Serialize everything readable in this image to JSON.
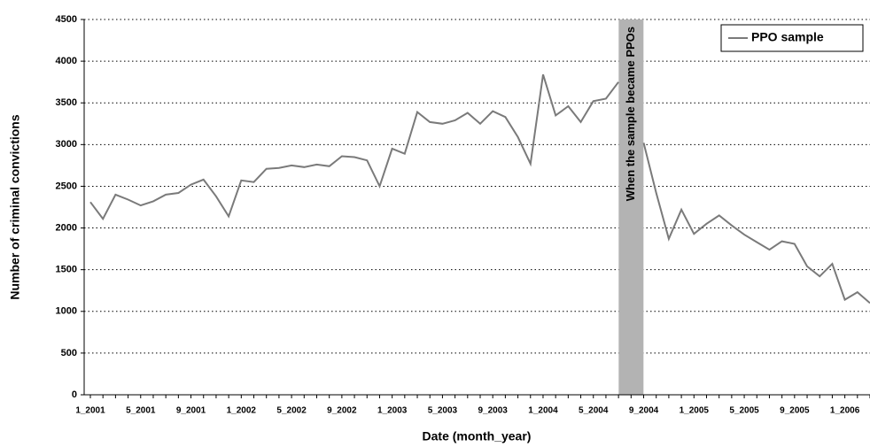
{
  "chart_data": {
    "type": "line",
    "x_label": "Date (month_year)",
    "y_label": "Number of criminal convictions",
    "annotation": "When the sample became PPOs",
    "categories": [
      "1_2001",
      null,
      null,
      null,
      "5_2001",
      null,
      null,
      null,
      "9_2001",
      null,
      null,
      null,
      "1_2002",
      null,
      null,
      null,
      "5_2002",
      null,
      null,
      null,
      "9_2002",
      null,
      null,
      null,
      "1_2003",
      null,
      null,
      null,
      "5_2003",
      null,
      null,
      null,
      "9_2003",
      null,
      null,
      null,
      "1_2004",
      null,
      null,
      null,
      "5_2004",
      null,
      null,
      null,
      "9_2004",
      null,
      null,
      null,
      "1_2005",
      null,
      null,
      null,
      "5_2005",
      null,
      null,
      null,
      "9_2005",
      null,
      null,
      null,
      "1_2006",
      null,
      null
    ],
    "series": [
      {
        "name": "PPO sample",
        "color": "#7a7a7a",
        "values": [
          2310,
          2110,
          2400,
          2340,
          2270,
          2320,
          2400,
          2420,
          2520,
          2580,
          2380,
          2140,
          2570,
          2550,
          2710,
          2720,
          2750,
          2730,
          2760,
          2740,
          2860,
          2850,
          2810,
          2500,
          2950,
          2890,
          3390,
          3270,
          3250,
          3290,
          3380,
          3250,
          3400,
          3330,
          3090,
          2770,
          3840,
          3350,
          3460,
          3270,
          3520,
          3550,
          3750,
          null,
          3020,
          2420,
          1870,
          2220,
          1930,
          2050,
          2150,
          2030,
          1920,
          1830,
          1740,
          1840,
          1810,
          1540,
          1420,
          1570,
          1140,
          1230,
          1100
        ]
      }
    ],
    "ylim": [
      0,
      4500
    ],
    "yticks": [
      0,
      500,
      1000,
      1500,
      2000,
      2500,
      3000,
      3500,
      4000,
      4500
    ],
    "grid": true,
    "legend": "top-right"
  }
}
